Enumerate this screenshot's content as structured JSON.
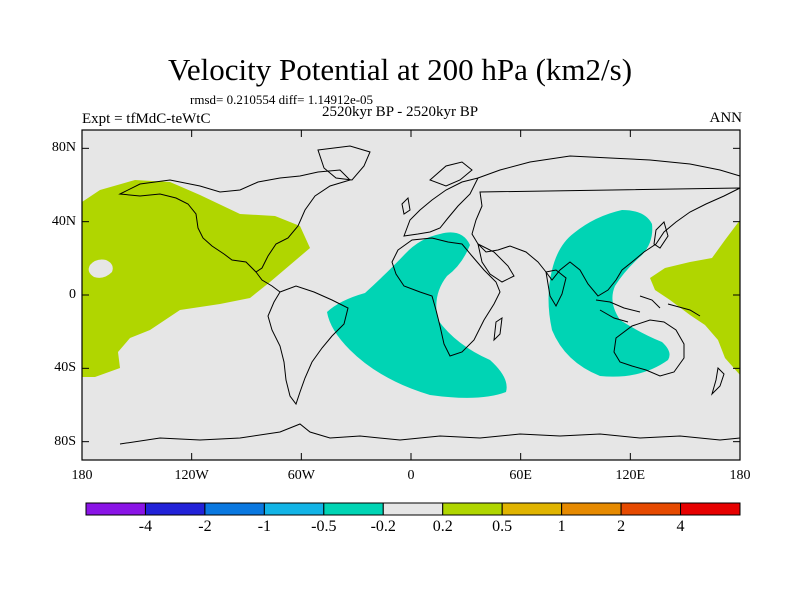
{
  "title": "Velocity Potential at 200 hPa (km2/s)",
  "stats": "rmsd= 0.210554  diff= 1.14912e-05",
  "left_label": "Expt = tfMdC-teWtC",
  "center_label": "2520kyr BP - 2520kyr BP",
  "right_label": "ANN",
  "map": {
    "projection": "cylindrical equidistant",
    "background_color": "#e6e6e6",
    "coast_color": "#000000",
    "lat_ticks": [
      "80N",
      "40N",
      "0",
      "40S",
      "80S"
    ],
    "lat_values": [
      80,
      40,
      0,
      -40,
      -80
    ],
    "lon_ticks": [
      "180",
      "120W",
      "60W",
      "0",
      "60E",
      "120E",
      "180"
    ],
    "lon_values": [
      -180,
      -120,
      -60,
      0,
      60,
      120,
      180
    ],
    "regions": [
      {
        "name": "positive-pacific",
        "level": "0.2 to 0.5",
        "color": "#b0d600"
      },
      {
        "name": "positive-west-pacific",
        "level": "0.2 to 0.5",
        "color": "#b0d600"
      },
      {
        "name": "negative-atlantic-africa",
        "level": "-0.5 to -0.2",
        "color": "#00d4b4"
      },
      {
        "name": "negative-indian-ocean",
        "level": "-0.5 to -0.2",
        "color": "#00d4b4"
      }
    ]
  },
  "colorbar": {
    "colors": [
      "#8a14e6",
      "#2222d8",
      "#0a78e0",
      "#12b4e6",
      "#00d4b4",
      "#e6e6e6",
      "#b0d600",
      "#e0b400",
      "#e68a00",
      "#e64a00",
      "#e60000"
    ],
    "labels": [
      "-4",
      "-2",
      "-1",
      "-0.5",
      "-0.2",
      "0.2",
      "0.5",
      "1",
      "2",
      "4"
    ]
  }
}
